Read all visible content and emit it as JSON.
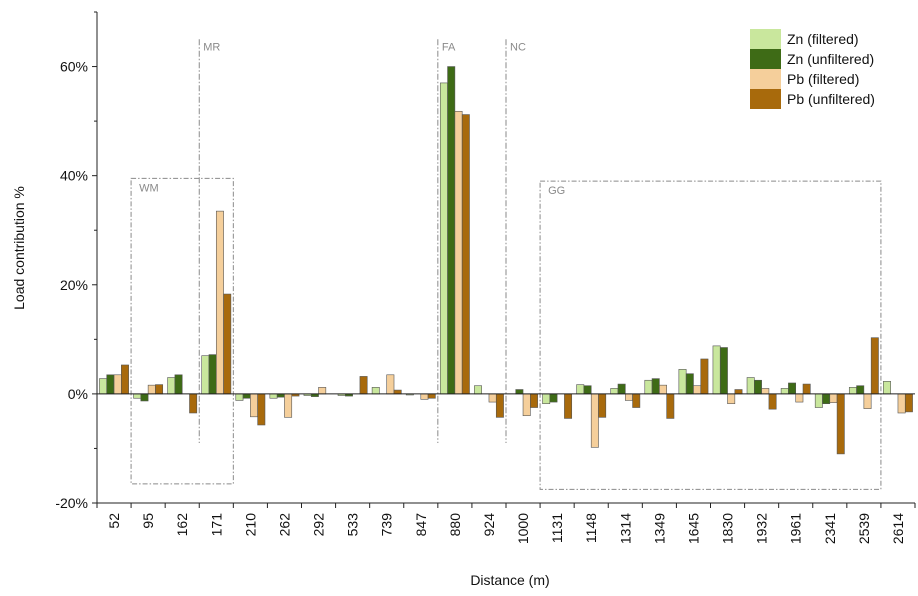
{
  "chart_data": {
    "type": "bar",
    "xlabel": "Distance (m)",
    "ylabel": "Load contribution %",
    "ylim": [
      -20,
      70
    ],
    "yticks": [
      -20,
      0,
      20,
      40,
      60
    ],
    "ytick_labels": [
      "-20%",
      "0%",
      "20%",
      "40%",
      "60%"
    ],
    "grid": false,
    "legend_position": "top-right",
    "categories": [
      "52",
      "95",
      "162",
      "171",
      "210",
      "262",
      "292",
      "533",
      "739",
      "847",
      "880",
      "924",
      "1000",
      "1131",
      "1148",
      "1314",
      "1349",
      "1645",
      "1830",
      "1932",
      "1961",
      "2341",
      "2539",
      "2614"
    ],
    "series": [
      {
        "name": "Zn (filtered)",
        "color": "#c9e79d",
        "values": [
          2.8,
          -0.8,
          3.0,
          7.0,
          -1.2,
          -0.8,
          -0.3,
          -0.3,
          1.2,
          -0.2,
          57.0,
          1.5,
          0.0,
          -1.8,
          1.7,
          1.0,
          2.5,
          4.5,
          8.8,
          3.0,
          1.0,
          -2.5,
          1.2,
          2.3
        ]
      },
      {
        "name": "Zn (unfiltered)",
        "color": "#3e6b16",
        "values": [
          3.5,
          -1.3,
          3.5,
          7.2,
          -0.8,
          -0.6,
          -0.5,
          -0.4,
          0.0,
          0.0,
          60.0,
          0.0,
          0.8,
          -1.5,
          1.5,
          1.8,
          2.8,
          3.7,
          8.5,
          2.5,
          2.0,
          -1.8,
          1.5,
          0.0
        ]
      },
      {
        "name": "Pb (filtered)",
        "color": "#f5cf9b",
        "values": [
          3.5,
          1.6,
          0.0,
          33.5,
          -4.2,
          -4.3,
          1.2,
          0.0,
          3.5,
          -1.0,
          51.8,
          -1.5,
          -4.0,
          0.0,
          -9.8,
          -1.2,
          1.6,
          1.5,
          -1.8,
          1.0,
          -1.5,
          -1.6,
          -2.7,
          -3.5
        ]
      },
      {
        "name": "Pb (unfiltered)",
        "color": "#a86a0c",
        "values": [
          5.3,
          1.7,
          -3.5,
          18.3,
          -5.7,
          -0.4,
          0.0,
          3.2,
          0.7,
          -0.8,
          51.2,
          -4.3,
          -2.5,
          -4.5,
          -4.3,
          -2.5,
          -4.5,
          6.4,
          0.8,
          -2.8,
          1.8,
          -11.0,
          10.3,
          -3.3
        ]
      }
    ],
    "annotations": [
      {
        "label": "MR",
        "type": "vertical-line",
        "between": [
          "162",
          "171"
        ]
      },
      {
        "label": "FA",
        "type": "vertical-line",
        "between": [
          "847",
          "880"
        ]
      },
      {
        "label": "NC",
        "type": "vertical-line",
        "between": [
          "924",
          "1000"
        ]
      },
      {
        "label": "WM",
        "type": "dashed-box",
        "from": "95",
        "to": "171",
        "y_range": [
          -16.5,
          39.5
        ]
      },
      {
        "label": "GG",
        "type": "dashed-box",
        "from": "1131",
        "to": "2539",
        "y_range": [
          -17.5,
          39.0
        ]
      }
    ]
  }
}
